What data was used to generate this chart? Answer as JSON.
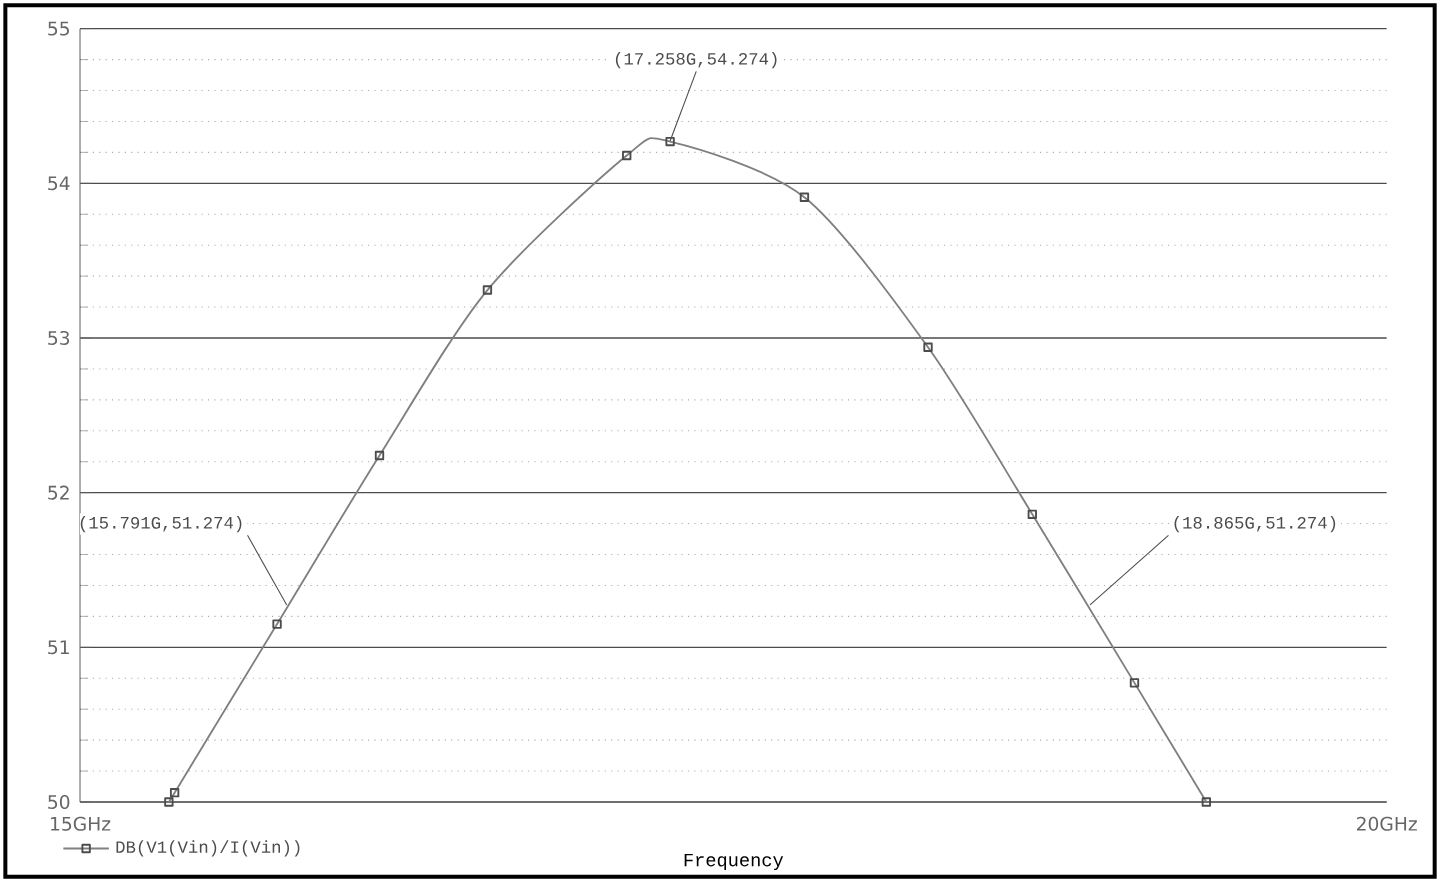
{
  "chart_data": {
    "type": "line",
    "xlabel": "Frequency",
    "series": [
      {
        "name": "DB(V1(Vin)/I(Vin))",
        "color": "#808080",
        "x": [
          15.34,
          15.362,
          15.754,
          16.146,
          16.559,
          17.092,
          17.258,
          17.772,
          18.245,
          18.644,
          19.035,
          19.31
        ],
        "values": [
          50.0,
          50.06,
          51.15,
          52.24,
          53.31,
          54.18,
          54.27,
          53.91,
          52.94,
          51.86,
          50.77,
          50.0
        ]
      }
    ],
    "xlim": [
      15,
      20
    ],
    "ylim": [
      50,
      55
    ],
    "xticks": [
      {
        "value": 15,
        "label": "15GHz"
      },
      {
        "value": 20,
        "label": "20GHz"
      }
    ],
    "yticks": [
      50,
      51,
      52,
      53,
      54,
      55
    ],
    "grid": "y",
    "marker": "square",
    "line_style": "solid",
    "legend": "bottom left",
    "annotations": [
      {
        "text": "(15.791G,51.274)",
        "x": 15.791,
        "y": 51.274
      },
      {
        "text": "(17.258G,54.274)",
        "x": 17.258,
        "y": 54.274
      },
      {
        "text": "(18.865G,51.274)",
        "x": 18.865,
        "y": 51.274
      }
    ]
  }
}
